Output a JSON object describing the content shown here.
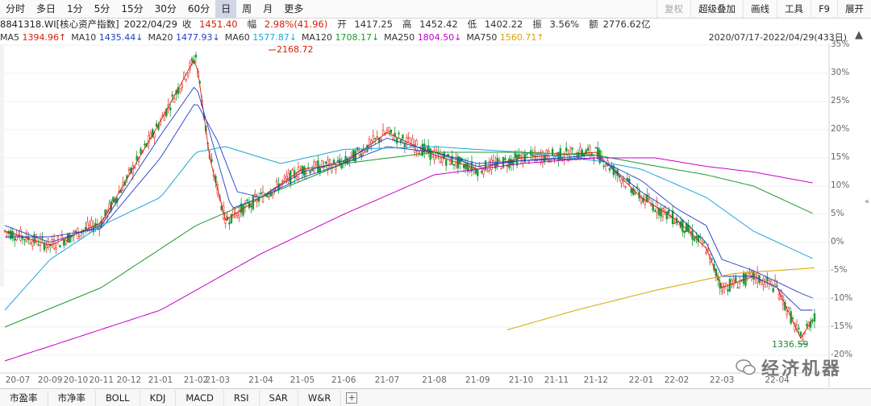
{
  "toolbar": {
    "periods": [
      "分时",
      "多日",
      "1分",
      "5分",
      "15分",
      "30分",
      "60分",
      "日",
      "周",
      "月",
      "更多"
    ],
    "active_period": "日",
    "right_tools": [
      "复权",
      "超级叠加",
      "画线",
      "工具",
      "F9",
      "展开"
    ]
  },
  "info": {
    "code": "8841318.WI[核心资产指数]",
    "date": "2022/04/29",
    "close_label": "收",
    "close": "1451.40",
    "change_label": "幅",
    "change": "2.98%(41.96)",
    "open_label": "开",
    "open": "1417.25",
    "high_label": "高",
    "high": "1452.42",
    "low_label": "低",
    "low": "1402.22",
    "amp_label": "振",
    "amp": "3.56%",
    "amount_label": "额",
    "amount": "2776.62亿"
  },
  "ma": [
    {
      "label": "MA5",
      "value": "1394.96↑",
      "color": "#d81e06"
    },
    {
      "label": "MA10",
      "value": "1435.44↓",
      "color": "#1f3fbf"
    },
    {
      "label": "MA20",
      "value": "1477.93↓",
      "color": "#2040c8"
    },
    {
      "label": "MA60",
      "value": "1577.87↓",
      "color": "#18a8d8"
    },
    {
      "label": "MA120",
      "value": "1708.17↓",
      "color": "#1e9a2e"
    },
    {
      "label": "MA250",
      "value": "1804.50↓",
      "color": "#c800c8"
    },
    {
      "label": "MA750",
      "value": "1560.71↑",
      "color": "#d9a400"
    }
  ],
  "range": "2020/07/17-2022/04/29(433日)",
  "chart_data": {
    "type": "line",
    "yticks": [
      "35%",
      "30%",
      "25%",
      "20%",
      "15%",
      "10%",
      "5%",
      "0%",
      "-5%",
      "-10%",
      "-15%",
      "-20%"
    ],
    "ytick_values": [
      35,
      30,
      25,
      20,
      15,
      10,
      5,
      0,
      -5,
      -10,
      -15,
      -20
    ],
    "ylim": [
      -20,
      35
    ],
    "xticks": [
      "20-07",
      "20-09",
      "20-10",
      "20-11",
      "20-12",
      "21-01",
      "21-02",
      "21-03",
      "21-04",
      "21-05",
      "21-06",
      "21-07",
      "21-08",
      "21-09",
      "21-10",
      "21-11",
      "21-12",
      "22-01",
      "22-02",
      "22-03",
      "22-04"
    ],
    "xtick_index": [
      0,
      23,
      36,
      49,
      63,
      79,
      97,
      108,
      130,
      151,
      172,
      194,
      218,
      240,
      262,
      280,
      300,
      323,
      341,
      364,
      392
    ],
    "n": 412,
    "annotations": {
      "high": "2168.72",
      "low": "1336.59"
    },
    "series": [
      {
        "name": "MA5",
        "color": "#d81e06",
        "x": [
          0,
          23,
          49,
          79,
          97,
          104,
          112,
          130,
          151,
          172,
          194,
          218,
          240,
          262,
          300,
          323,
          341,
          356,
          364,
          380,
          392,
          404,
          411
        ],
        "y": [
          2,
          -0.5,
          3.5,
          21.5,
          33,
          15,
          4,
          8,
          13,
          14,
          19.5,
          15.5,
          13,
          15,
          16,
          8,
          4,
          -1,
          -8,
          -6,
          -8,
          -17,
          -13
        ]
      },
      {
        "name": "MA10",
        "color": "#1f3fbf",
        "x": [
          0,
          23,
          49,
          79,
          97,
          106,
          115,
          130,
          151,
          172,
          194,
          218,
          240,
          262,
          300,
          323,
          341,
          356,
          364,
          380,
          392,
          404,
          411
        ],
        "y": [
          3,
          0,
          3,
          19,
          28,
          17,
          6,
          8,
          12.5,
          14.5,
          18.5,
          16,
          13.5,
          14.5,
          15.5,
          9,
          5,
          0,
          -6,
          -6,
          -8,
          -12,
          -12
        ]
      },
      {
        "name": "MA20",
        "color": "#2040c8",
        "x": [
          0,
          23,
          49,
          79,
          97,
          108,
          118,
          130,
          151,
          172,
          194,
          218,
          240,
          262,
          300,
          323,
          341,
          356,
          364,
          380,
          392,
          404,
          411
        ],
        "y": [
          1,
          1,
          2.5,
          15,
          25,
          18,
          9,
          8,
          11.5,
          14,
          17,
          16,
          14,
          14.5,
          15,
          11,
          6,
          3,
          -3,
          -5,
          -7,
          -9,
          -10
        ]
      },
      {
        "name": "MA60",
        "color": "#18a8d8",
        "x": [
          0,
          23,
          49,
          79,
          97,
          112,
          140,
          172,
          218,
          262,
          300,
          323,
          356,
          380,
          411
        ],
        "y": [
          -12,
          -3,
          3,
          8,
          16,
          17,
          14,
          16.5,
          17,
          16,
          14.5,
          13,
          8,
          2,
          -3
        ]
      },
      {
        "name": "MA120",
        "color": "#1e9a2e",
        "x": [
          0,
          49,
          97,
          130,
          172,
          218,
          262,
          300,
          323,
          356,
          380,
          411
        ],
        "y": [
          -15,
          -8,
          3,
          8,
          14,
          16,
          16,
          15.5,
          14,
          12,
          10,
          5
        ]
      },
      {
        "name": "MA250",
        "color": "#c800c8",
        "x": [
          0,
          79,
          130,
          172,
          218,
          262,
          300,
          330,
          356,
          380,
          411
        ],
        "y": [
          -21,
          -12,
          -2,
          5,
          12,
          14,
          15,
          15,
          13.5,
          12.5,
          10.5
        ]
      },
      {
        "name": "MA750",
        "color": "#d9a400",
        "x": [
          255,
          290,
          330,
          370,
          411
        ],
        "y": [
          -15.5,
          -12,
          -8.5,
          -5.5,
          -4.5
        ]
      }
    ]
  },
  "bottom_tabs": [
    "市盈率",
    "市净率",
    "BOLL",
    "KDJ",
    "MACD",
    "RSI",
    "SAR",
    "W&R"
  ],
  "watermark": "经济机器"
}
